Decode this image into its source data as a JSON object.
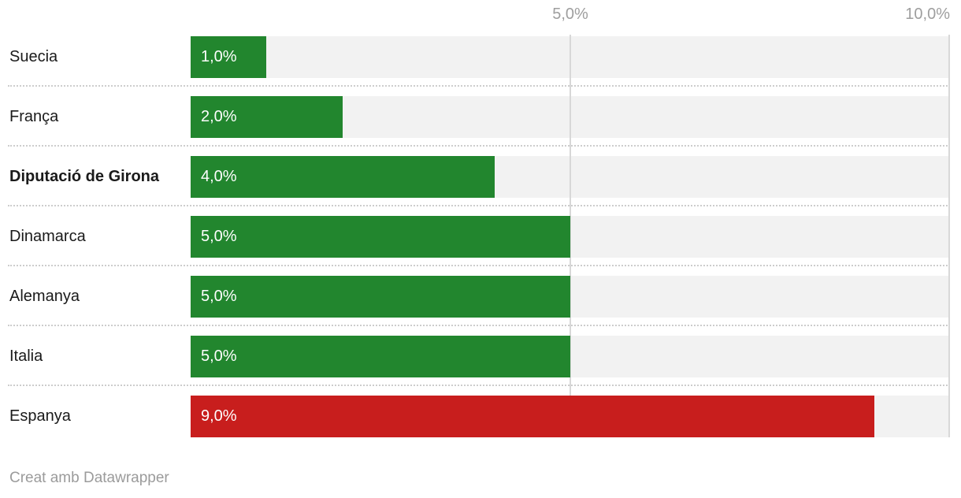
{
  "chart_data": {
    "type": "bar",
    "orientation": "horizontal",
    "categories": [
      "Suecia",
      "França",
      "Diputació de Girona",
      "Dinamarca",
      "Alemanya",
      "Italia",
      "Espanya"
    ],
    "values": [
      1.0,
      2.0,
      4.0,
      5.0,
      5.0,
      5.0,
      9.0
    ],
    "value_labels": [
      "1,0%",
      "2,0%",
      "4,0%",
      "5,0%",
      "5,0%",
      "5,0%",
      "9,0%"
    ],
    "bar_colors": [
      "#22862e",
      "#22862e",
      "#22862e",
      "#22862e",
      "#22862e",
      "#22862e",
      "#c81e1d"
    ],
    "xlim": [
      0,
      10
    ],
    "x_ticks": [
      {
        "value": 5,
        "label": "5,0%"
      },
      {
        "value": 10,
        "label": "10,0%"
      }
    ],
    "bold_categories": [
      "Diputació de Girona"
    ],
    "grid": true,
    "legend": "none",
    "footer": "Creat amb Datawrapper"
  },
  "chart": {
    "axis": {
      "max": 10,
      "ticks": [
        "5,0%",
        "10,0%"
      ]
    },
    "rows": [
      {
        "label": "Suecia",
        "value": 1.0,
        "value_label": "1,0%",
        "color": "#22862e",
        "bold": false
      },
      {
        "label": "França",
        "value": 2.0,
        "value_label": "2,0%",
        "color": "#22862e",
        "bold": false
      },
      {
        "label": "Diputació de Girona",
        "value": 4.0,
        "value_label": "4,0%",
        "color": "#22862e",
        "bold": true
      },
      {
        "label": "Dinamarca",
        "value": 5.0,
        "value_label": "5,0%",
        "color": "#22862e",
        "bold": false
      },
      {
        "label": "Alemanya",
        "value": 5.0,
        "value_label": "5,0%",
        "color": "#22862e",
        "bold": false
      },
      {
        "label": "Italia",
        "value": 5.0,
        "value_label": "5,0%",
        "color": "#22862e",
        "bold": false
      },
      {
        "label": "Espanya",
        "value": 9.0,
        "value_label": "9,0%",
        "color": "#c81e1d",
        "bold": false
      }
    ],
    "footer": "Creat amb Datawrapper"
  },
  "colors": {
    "green": "#22862e",
    "red": "#c81e1d",
    "track": "#f2f2f2",
    "gridline": "#d8d8d8",
    "separator": "#cdcdcd",
    "axis_text": "#9e9e9e",
    "label_text": "#1a1a1a",
    "value_text": "#ffffff",
    "footer_text": "#9b9b9b"
  }
}
